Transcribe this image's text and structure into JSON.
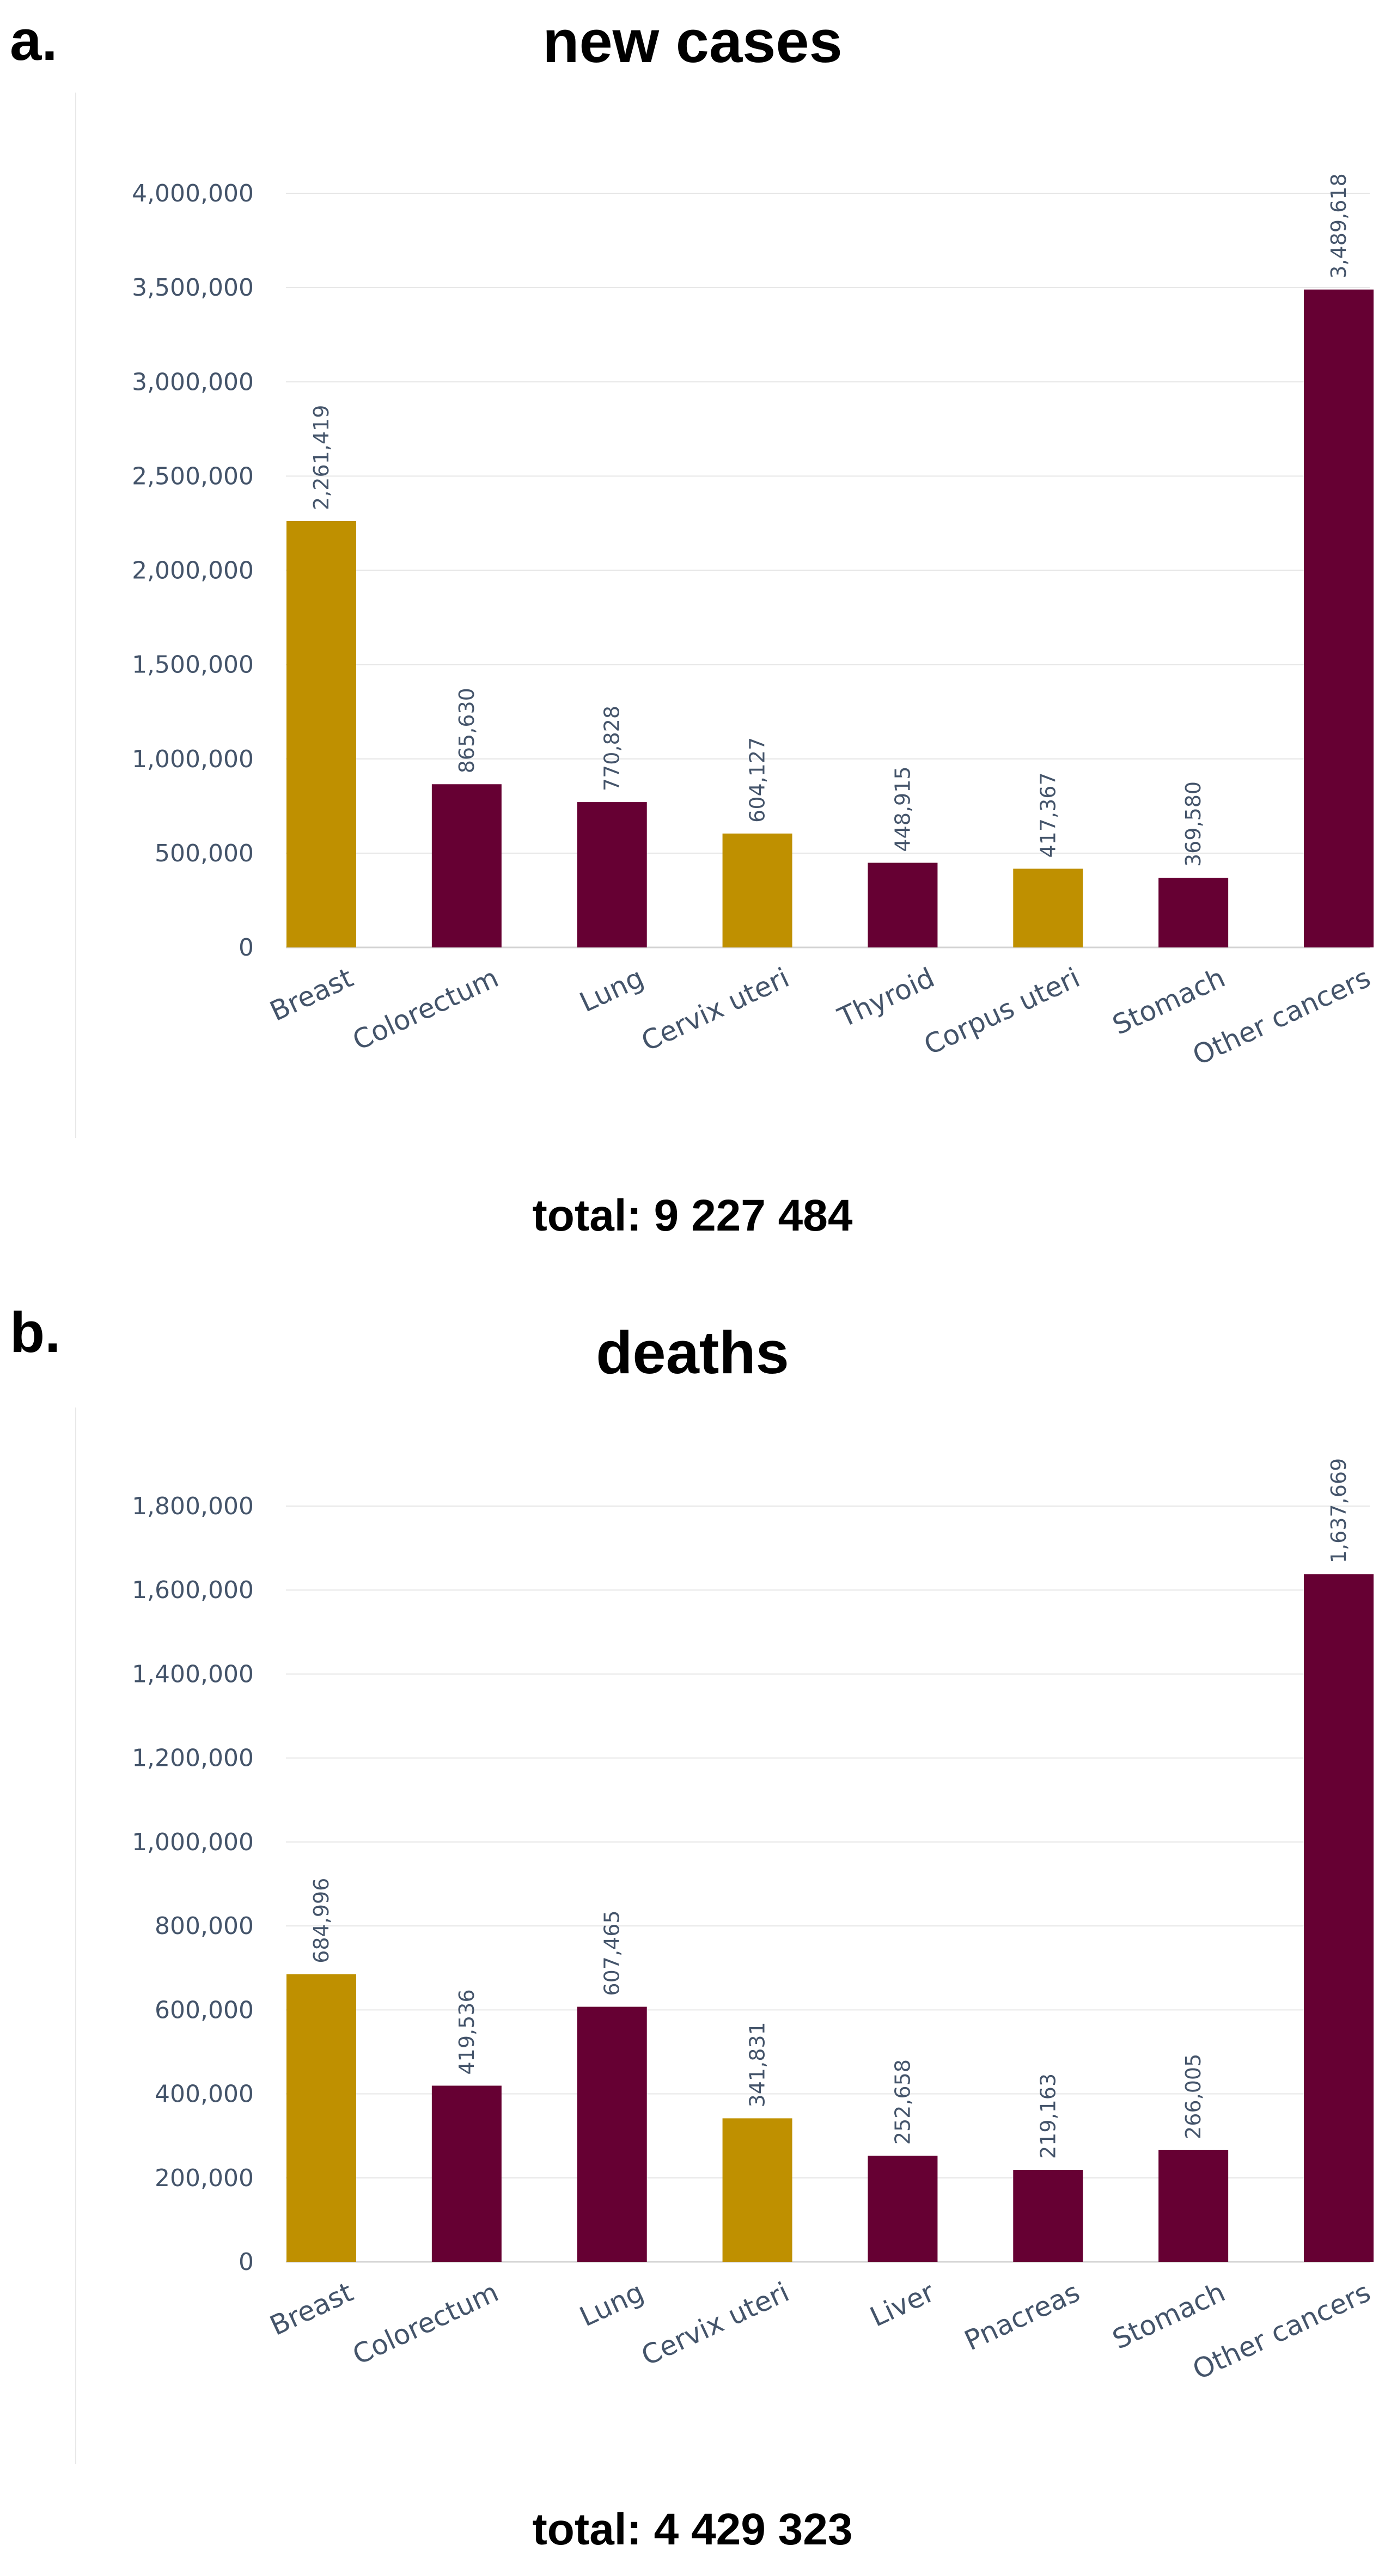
{
  "colors": {
    "highlight": "#bf9000",
    "default": "#660033",
    "axis_text": "#44546a"
  },
  "panels": [
    {
      "label": "a.",
      "total": "total: 9 227 484"
    },
    {
      "label": "b.",
      "total": "total: 4 429 323"
    }
  ],
  "chart_data": [
    {
      "type": "bar",
      "title": "new cases",
      "categories": [
        "Breast",
        "Colorectum",
        "Lung",
        "Cervix uteri",
        "Thyroid",
        "Corpus uteri",
        "Stomach",
        "Other cancers"
      ],
      "values": [
        2261419,
        865630,
        770828,
        604127,
        448915,
        417367,
        369580,
        3489618
      ],
      "value_labels": [
        "2,261,419",
        "865,630",
        "770,828",
        "604,127",
        "448,915",
        "417,367",
        "369,580",
        "3,489,618"
      ],
      "highlight": [
        true,
        false,
        false,
        true,
        false,
        true,
        false,
        false
      ],
      "ylim": [
        0,
        4000000
      ],
      "yticks": [
        0,
        500000,
        1000000,
        1500000,
        2000000,
        2500000,
        3000000,
        3500000,
        4000000
      ],
      "ytick_labels": [
        "0",
        "500,000",
        "1,000,000",
        "1,500,000",
        "2,000,000",
        "2,500,000",
        "3,000,000",
        "3,500,000",
        "4,000,000"
      ],
      "xlabel": "",
      "ylabel": "",
      "grid": true
    },
    {
      "type": "bar",
      "title": "deaths",
      "categories": [
        "Breast",
        "Colorectum",
        "Lung",
        "Cervix uteri",
        "Liver",
        "Pnacreas",
        "Stomach",
        "Other cancers"
      ],
      "values": [
        684996,
        419536,
        607465,
        341831,
        252658,
        219163,
        266005,
        1637669
      ],
      "value_labels": [
        "684,996",
        "419,536",
        "607,465",
        "341,831",
        "252,658",
        "219,163",
        "266,005",
        "1,637,669"
      ],
      "highlight": [
        true,
        false,
        false,
        true,
        false,
        false,
        false,
        false
      ],
      "ylim": [
        0,
        1800000
      ],
      "yticks": [
        0,
        200000,
        400000,
        600000,
        800000,
        1000000,
        1200000,
        1400000,
        1600000,
        1800000
      ],
      "ytick_labels": [
        "0",
        "200,000",
        "400,000",
        "600,000",
        "800,000",
        "1,000,000",
        "1,200,000",
        "1,400,000",
        "1,600,000",
        "1,800,000"
      ],
      "xlabel": "",
      "ylabel": "",
      "grid": true
    }
  ]
}
